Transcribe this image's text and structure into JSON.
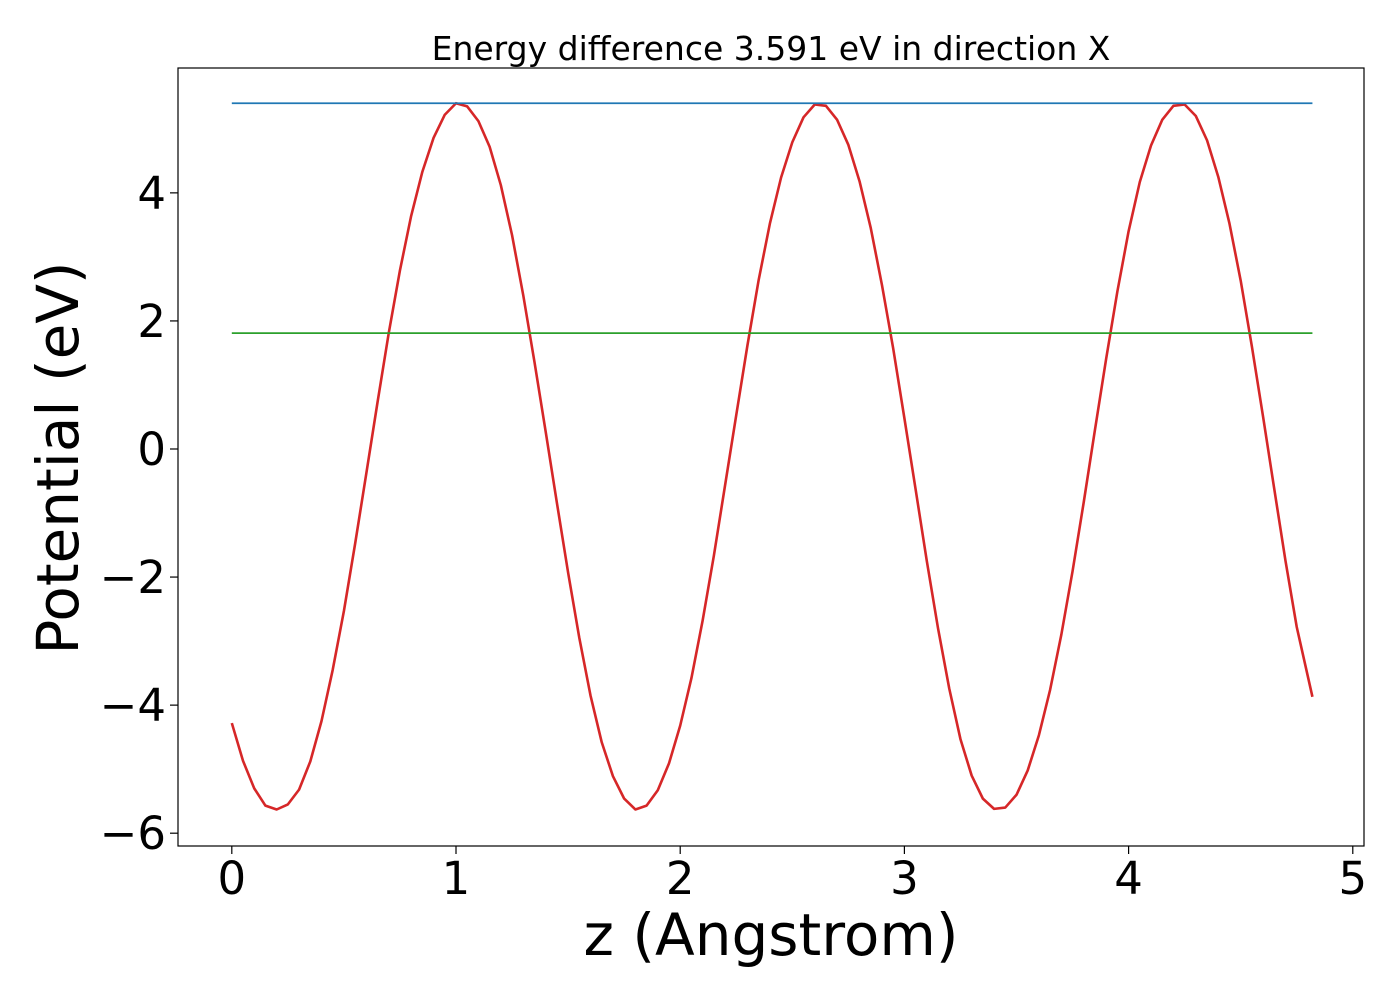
{
  "chart_data": {
    "type": "line",
    "title": "Energy difference 3.591 eV in direction X",
    "xlabel": "z (Angstrom)",
    "ylabel": "Potential (eV)",
    "xlim": [
      -0.24,
      5.05
    ],
    "ylim": [
      -6.2,
      5.95
    ],
    "xticks": [
      0,
      1,
      2,
      3,
      4,
      5
    ],
    "xtick_labels": [
      "0",
      "1",
      "2",
      "3",
      "4",
      "5"
    ],
    "yticks": [
      -6,
      -4,
      -2,
      0,
      2,
      4
    ],
    "ytick_labels": [
      "−6",
      "−4",
      "−2",
      "0",
      "2",
      "4"
    ],
    "grid": false,
    "legend": "none",
    "series": [
      {
        "color": "#d62728",
        "x": [
          0.0,
          0.05,
          0.1,
          0.15,
          0.2,
          0.25,
          0.3,
          0.35,
          0.4,
          0.45,
          0.5,
          0.55,
          0.6,
          0.65,
          0.7,
          0.75,
          0.8,
          0.85,
          0.9,
          0.95,
          1.0,
          1.05,
          1.1,
          1.15,
          1.2,
          1.25,
          1.3,
          1.35,
          1.4,
          1.45,
          1.5,
          1.55,
          1.6,
          1.65,
          1.7,
          1.75,
          1.8,
          1.85,
          1.9,
          1.95,
          2.0,
          2.05,
          2.1,
          2.15,
          2.2,
          2.25,
          2.3,
          2.35,
          2.4,
          2.45,
          2.5,
          2.55,
          2.6,
          2.65,
          2.7,
          2.75,
          2.8,
          2.85,
          2.9,
          2.95,
          3.0,
          3.05,
          3.1,
          3.15,
          3.2,
          3.25,
          3.3,
          3.35,
          3.4,
          3.45,
          3.5,
          3.55,
          3.6,
          3.65,
          3.7,
          3.75,
          3.8,
          3.85,
          3.9,
          3.95,
          4.0,
          4.05,
          4.1,
          4.15,
          4.2,
          4.25,
          4.3,
          4.35,
          4.4,
          4.45,
          4.5,
          4.55,
          4.6,
          4.65,
          4.7,
          4.75,
          4.82
        ],
        "y": [
          -4.28,
          -4.87,
          -5.3,
          -5.57,
          -5.63,
          -5.55,
          -5.32,
          -4.88,
          -4.25,
          -3.45,
          -2.53,
          -1.48,
          -0.38,
          0.73,
          1.81,
          2.79,
          3.64,
          4.33,
          4.86,
          5.22,
          5.4,
          5.35,
          5.12,
          4.72,
          4.12,
          3.34,
          2.4,
          1.36,
          0.27,
          -0.84,
          -1.93,
          -2.95,
          -3.85,
          -4.58,
          -5.11,
          -5.46,
          -5.63,
          -5.57,
          -5.33,
          -4.91,
          -4.32,
          -3.58,
          -2.68,
          -1.67,
          -0.57,
          0.53,
          1.62,
          2.64,
          3.52,
          4.24,
          4.79,
          5.18,
          5.38,
          5.36,
          5.14,
          4.75,
          4.18,
          3.45,
          2.56,
          1.57,
          0.48,
          -0.63,
          -1.75,
          -2.8,
          -3.74,
          -4.53,
          -5.1,
          -5.46,
          -5.62,
          -5.6,
          -5.4,
          -5.02,
          -4.47,
          -3.76,
          -2.9,
          -1.91,
          -0.83,
          0.3,
          1.41,
          2.46,
          3.4,
          4.17,
          4.74,
          5.14,
          5.36,
          5.38,
          5.2,
          4.82,
          4.25,
          3.52,
          2.63,
          1.6,
          0.5,
          -0.63,
          -1.75,
          -2.78,
          -3.87
        ]
      },
      {
        "color": "#1f77b4",
        "x": [
          0.0,
          4.82
        ],
        "y": [
          5.4,
          5.4
        ]
      },
      {
        "color": "#2ca02c",
        "x": [
          0.0,
          4.82
        ],
        "y": [
          1.81,
          1.81
        ]
      }
    ]
  }
}
